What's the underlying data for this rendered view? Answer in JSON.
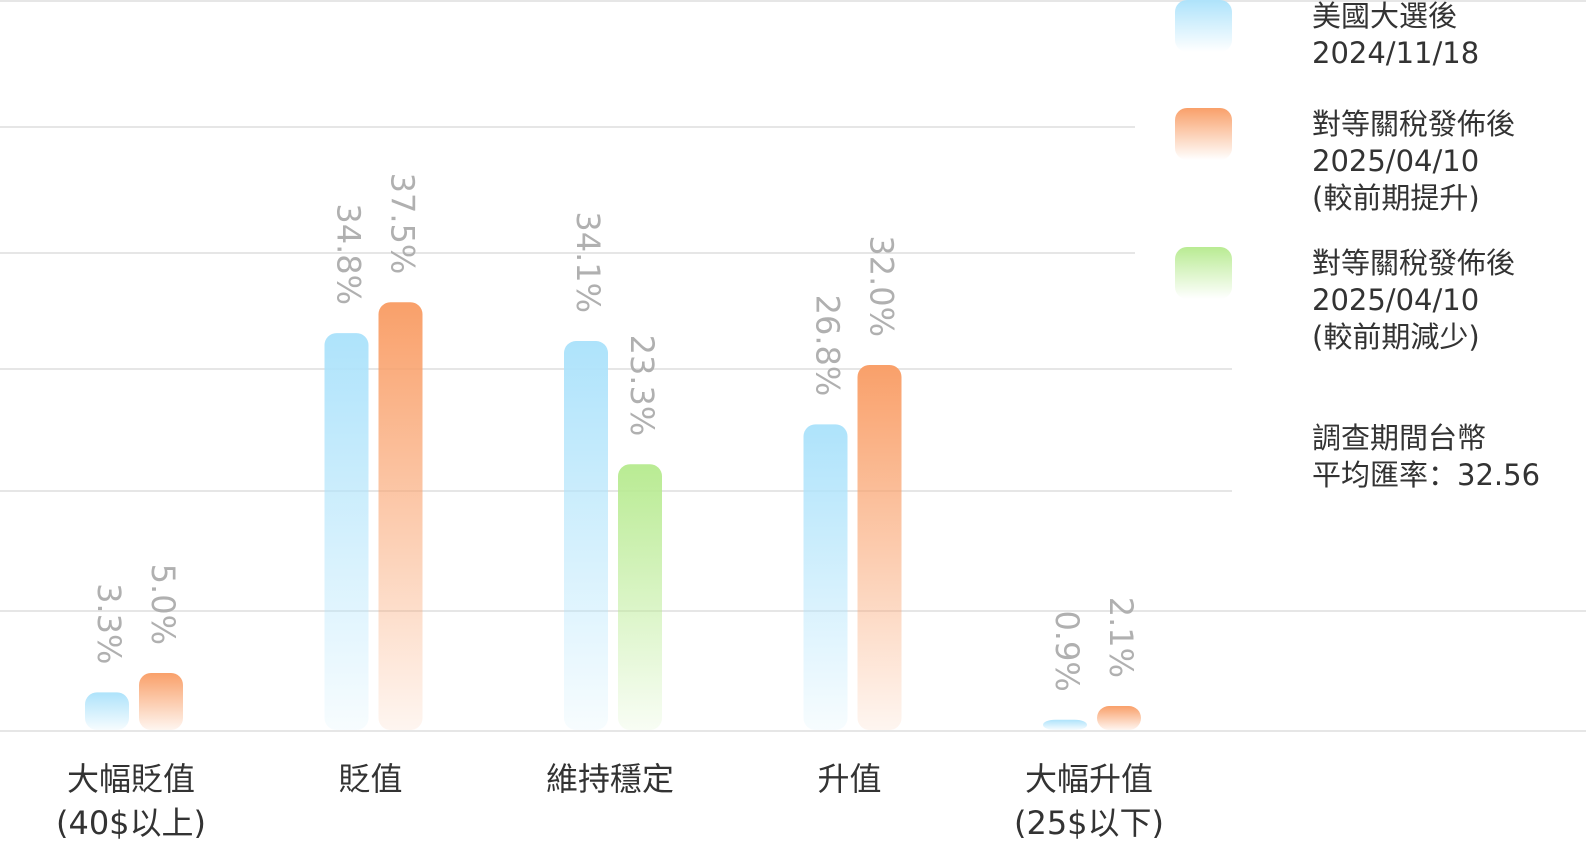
{
  "chart_data": {
    "type": "bar",
    "categories": [
      "大幅貶值\n(40$以上)",
      "貶值",
      "維持穩定",
      "升值",
      "大幅升值\n(25$以下)"
    ],
    "series": [
      {
        "name": "美國大選後\n2024/11/18",
        "color": "#aee3fb",
        "slot": 0,
        "values": [
          3.3,
          34.8,
          34.1,
          26.8,
          0.9
        ],
        "value_labels": [
          "3.3%",
          "34.8%",
          "34.1%",
          "26.8%",
          "0.9%"
        ]
      },
      {
        "name": "對等關稅發佈後\n2025/04/10\n(較前期提升)",
        "color": "#f9a06a",
        "slot": 1,
        "values": [
          5,
          37.5,
          null,
          32,
          2.1
        ],
        "value_labels": [
          "5.0%",
          "37.5%",
          null,
          "32.0%",
          "2.1%"
        ]
      },
      {
        "name": "對等關稅發佈後\n2025/04/10\n(較前期減少)",
        "color": "#b9eb93",
        "slot": 1,
        "values": [
          null,
          null,
          23.3,
          null,
          null
        ],
        "value_labels": [
          null,
          null,
          "23.3%",
          null,
          null
        ]
      }
    ],
    "annotation": "調查期間台幣\n平均匯率：32.56",
    "ylim": [
      0,
      64
    ]
  }
}
